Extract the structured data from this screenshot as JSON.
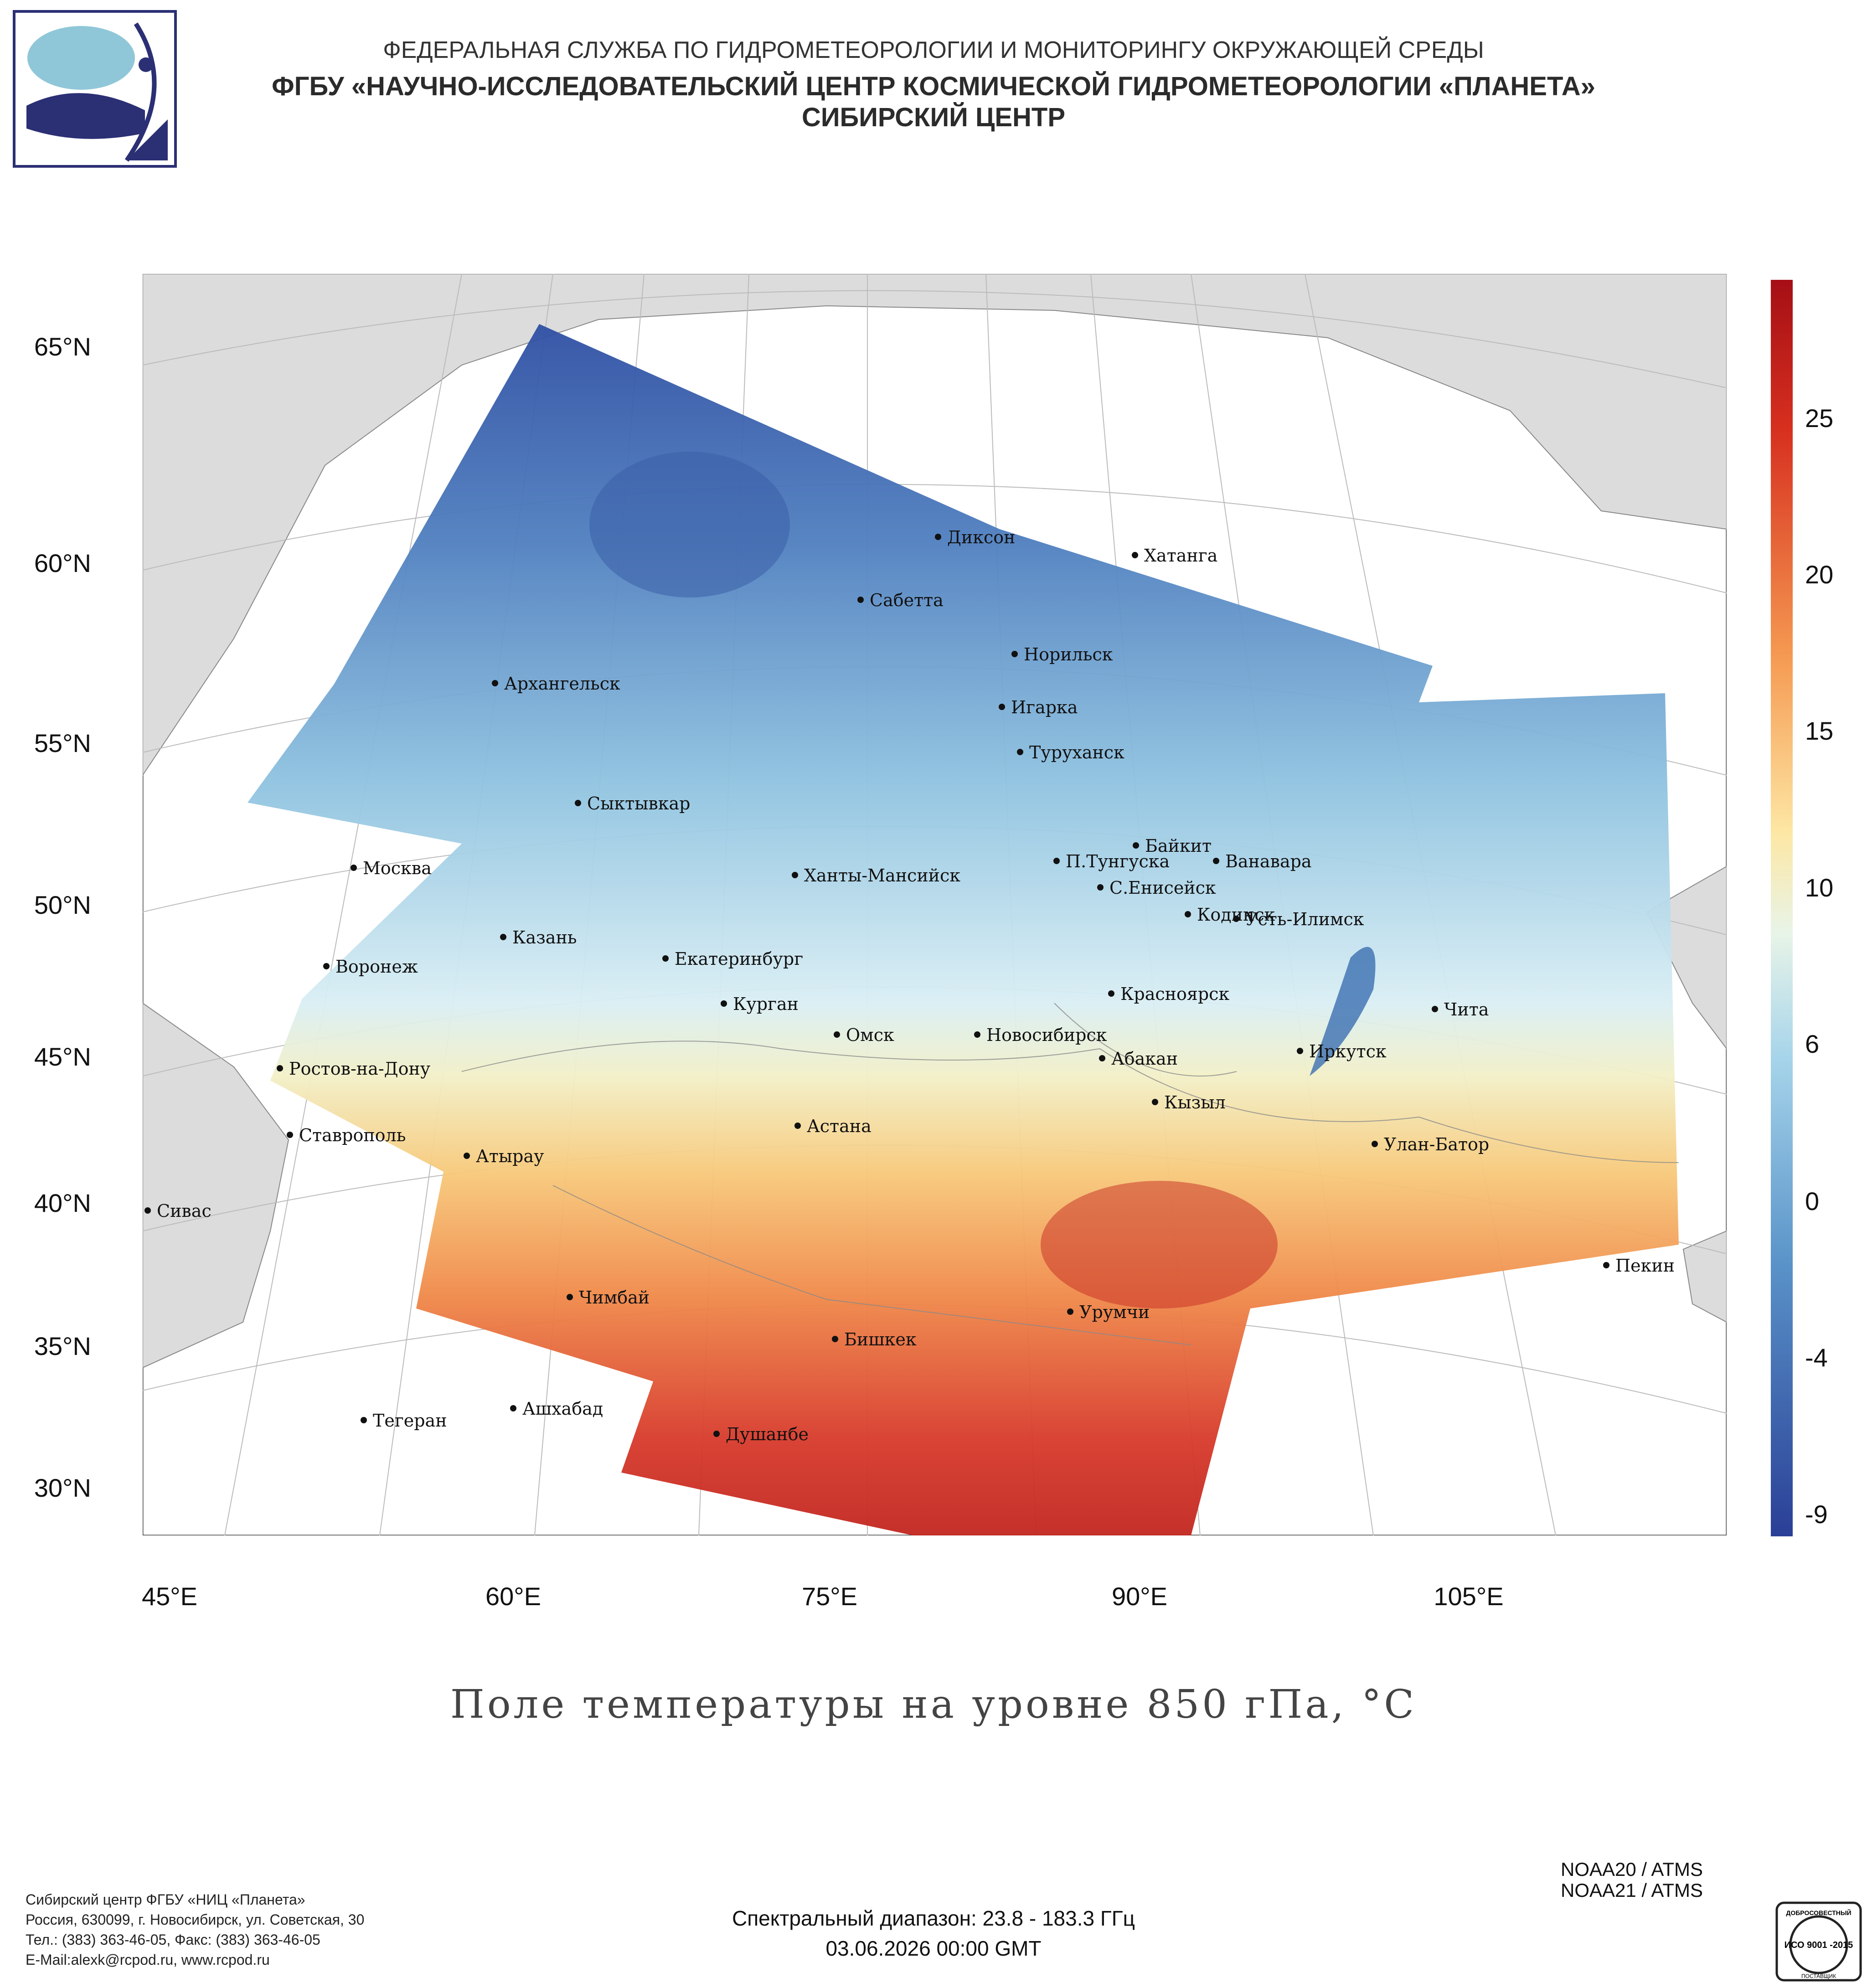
{
  "header": {
    "line1": "ФЕДЕРАЛЬНАЯ СЛУЖБА ПО ГИДРОМЕТЕОРОЛОГИИ И МОНИТОРИНГУ ОКРУЖАЮЩЕЙ СРЕДЫ",
    "line2": "ФГБУ «НАУЧНО-ИССЛЕДОВАТЕЛЬСКИЙ ЦЕНТР КОСМИЧЕСКОЙ ГИДРОМЕТЕОРОЛОГИИ «ПЛАНЕТА»",
    "line3": "СИБИРСКИЙ ЦЕНТР"
  },
  "map": {
    "lat_labels": [
      "65°N",
      "60°N",
      "55°N",
      "50°N",
      "45°N",
      "40°N",
      "35°N",
      "30°N"
    ],
    "lon_labels": [
      "45°E",
      "60°E",
      "75°E",
      "90°E",
      "105°E"
    ],
    "cities": [
      "Диксон",
      "Хатанга",
      "Сабетта",
      "Норильск",
      "Архангельск",
      "Игарка",
      "Туруханск",
      "Сыктывкар",
      "Байкит",
      "П.Тунгуска",
      "Ванавара",
      "Москва",
      "Ханты-Мансийск",
      "С.Енисейск",
      "Кодинск",
      "Усть-Илимск",
      "Казань",
      "Екатеринбург",
      "Воронеж",
      "Красноярск",
      "Курган",
      "Чита",
      "Омск",
      "Новосибирск",
      "Иркутск",
      "Ростов-на-Дону",
      "Абакан",
      "Кызыл",
      "Астана",
      "Ставрополь",
      "Улан-Батор",
      "Атырау",
      "Сивас",
      "Пекин",
      "Чимбай",
      "Урумчи",
      "Бишкек",
      "Ашхабад",
      "Тегеран",
      "Душанбе"
    ],
    "colors": {
      "cold": "#2f4fa3",
      "neutral": "#f4f5dc",
      "warm": "#cc2a22",
      "land": "#dcdcdc",
      "water": "#ffffff"
    }
  },
  "colorbar": {
    "ticks": [
      "25",
      "20",
      "15",
      "10",
      "6",
      "0",
      "-4",
      "-9"
    ],
    "min": -9,
    "max": 29
  },
  "title": "Поле температуры на уровне 850 гПа, °C",
  "satellites": [
    "NOAA20 / ATMS",
    "NOAA21 / ATMS"
  ],
  "spectral": "Спектральный диапазон: 23.8 - 183.3 ГГц",
  "datetime": "03.06.2026 00:00 GMT",
  "footer": {
    "line1": "Сибирский центр ФГБУ «НИЦ «Планета»",
    "line2": "Россия, 630099, г. Новосибирск, ул. Советская, 30",
    "line3": "Тел.: (383) 363-46-05, Факс: (383) 363-46-05",
    "line4": "E-Mail:alexk@rcpod.ru, www.rcpod.ru"
  },
  "iso": {
    "top": "ДОБРОСОВЕСТНЫЙ",
    "mid": "ИСО 9001 -2015",
    "bottom": "ПОСТАВЩИК"
  }
}
